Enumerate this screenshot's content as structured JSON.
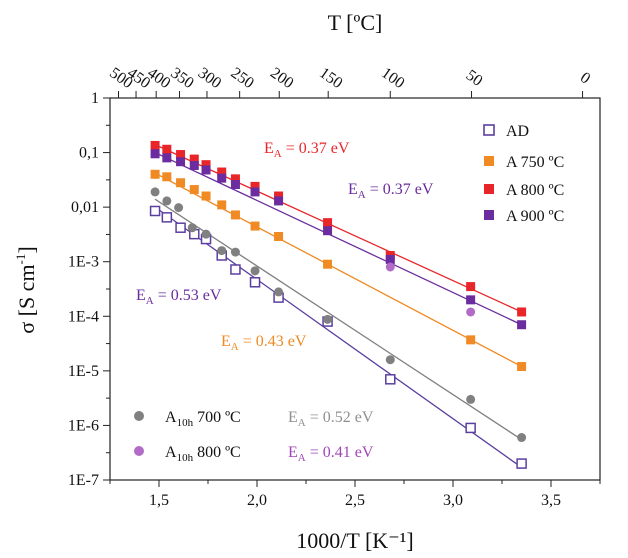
{
  "chart_data": {
    "type": "scatter",
    "xlabel": "1000/T [K⁻¹]",
    "top_xlabel": "T [ºC]",
    "ylabel_main": "σ [S cm",
    "ylabel_sup": "-1",
    "ylabel_end": "]",
    "xlim": [
      1.25,
      3.75
    ],
    "ylog": true,
    "ylim": [
      1e-07,
      1
    ],
    "x_ticks": [
      "1,5",
      "2,0",
      "2,5",
      "3,0",
      "3,5"
    ],
    "x_tick_values": [
      1.5,
      2.0,
      2.5,
      3.0,
      3.5
    ],
    "y_ticks": [
      "1",
      "0,1",
      "0,01",
      "1E-3",
      "1E-4",
      "1E-5",
      "1E-6",
      "1E-7"
    ],
    "y_tick_values": [
      1,
      0.1,
      0.01,
      0.001,
      0.0001,
      1e-05,
      1e-06,
      1e-07
    ],
    "top_ticks": [
      "500",
      "450",
      "400",
      "350",
      "300",
      "250",
      "200",
      "150",
      "100",
      "50",
      "0"
    ],
    "top_tick_values": [
      500,
      450,
      400,
      350,
      300,
      250,
      200,
      150,
      100,
      50,
      0
    ],
    "series": [
      {
        "name": "AD",
        "color": "#5b3fa0",
        "marker": "open-square",
        "x": [
          1.48,
          1.54,
          1.61,
          1.68,
          1.74,
          1.82,
          1.89,
          1.99,
          2.11,
          2.36,
          2.68,
          3.09,
          3.35
        ],
        "y": [
          0.0085,
          0.0065,
          0.0042,
          0.0032,
          0.0026,
          0.0013,
          0.00072,
          0.00042,
          0.00022,
          8e-05,
          7e-06,
          9e-07,
          2e-07
        ],
        "fit": {
          "x": [
            1.48,
            3.35
          ],
          "y": [
            0.01,
            1.7e-07
          ]
        }
      },
      {
        "name": "A 750 ºC",
        "color": "#f08a24",
        "marker": "square",
        "x": [
          1.48,
          1.54,
          1.61,
          1.68,
          1.74,
          1.82,
          1.89,
          1.99,
          2.11,
          2.36,
          3.09,
          3.35
        ],
        "y": [
          0.04,
          0.036,
          0.028,
          0.021,
          0.016,
          0.011,
          0.0072,
          0.0045,
          0.0029,
          0.0009,
          3.7e-05,
          1.2e-05
        ],
        "fit": {
          "x": [
            1.48,
            3.35
          ],
          "y": [
            0.042,
            1.2e-05
          ]
        }
      },
      {
        "name": "A 800 ºC",
        "color": "#e8262a",
        "marker": "square",
        "x": [
          1.48,
          1.54,
          1.61,
          1.68,
          1.74,
          1.82,
          1.89,
          1.99,
          2.11,
          2.36,
          2.68,
          3.09,
          3.35
        ],
        "y": [
          0.135,
          0.115,
          0.092,
          0.076,
          0.06,
          0.044,
          0.033,
          0.024,
          0.016,
          0.0052,
          0.0013,
          0.00035,
          0.00012
        ],
        "fit": {
          "x": [
            1.48,
            3.35
          ],
          "y": [
            0.14,
            0.00012
          ]
        }
      },
      {
        "name": "A 900 ºC",
        "color": "#6a2c9e",
        "marker": "square",
        "x": [
          1.48,
          1.54,
          1.61,
          1.68,
          1.74,
          1.82,
          1.89,
          1.99,
          2.11,
          2.36,
          2.68,
          3.09,
          3.35
        ],
        "y": [
          0.095,
          0.08,
          0.068,
          0.058,
          0.048,
          0.034,
          0.026,
          0.019,
          0.013,
          0.0037,
          0.0011,
          0.0002,
          7e-05
        ],
        "fit": {
          "x": [
            1.48,
            3.35
          ],
          "y": [
            0.1,
            7e-05
          ]
        }
      },
      {
        "name": "A10h 700 ºC",
        "color": "#808080",
        "marker": "circle",
        "x": [
          1.48,
          1.54,
          1.6,
          1.67,
          1.74,
          1.82,
          1.89,
          1.99,
          2.11,
          2.36,
          2.68,
          3.09,
          3.35
        ],
        "y": [
          0.019,
          0.013,
          0.0098,
          0.0042,
          0.0032,
          0.0016,
          0.0015,
          0.00068,
          0.00028,
          8.8e-05,
          1.6e-05,
          3e-06,
          6e-07
        ],
        "fit": {
          "x": [
            1.48,
            3.35
          ],
          "y": [
            0.014,
            5.5e-07
          ]
        }
      },
      {
        "name": "A10h 800 ºC",
        "color": "#b26bc7",
        "marker": "circle",
        "x": [
          2.68,
          3.09
        ],
        "y": [
          0.0008,
          0.00012
        ],
        "fit": null
      }
    ],
    "legend": {
      "placement": "right",
      "items": [
        {
          "label": "AD"
        },
        {
          "label": "A 750 ºC"
        },
        {
          "label": "A 800 ºC"
        },
        {
          "label": "A 900 ºC"
        }
      ]
    },
    "lower_legend": [
      {
        "base": "A",
        "sub": "10h",
        "rest": " 700 ºC",
        "ea_base": "E",
        "ea_sub": "A",
        "ea_rest": " = 0.52 eV",
        "color": "#808080"
      },
      {
        "base": "A",
        "sub": "10h",
        "rest": " 800 ºC",
        "ea_base": "E",
        "ea_sub": "A",
        "ea_rest": " = 0.41 eV",
        "color": "#b26bc7"
      }
    ],
    "annotations": [
      {
        "base": "E",
        "sub": "A",
        "rest": " = 0.37 eV",
        "color": "#e8262a"
      },
      {
        "base": "E",
        "sub": "A",
        "rest": " = 0.37 eV",
        "color": "#6a2c9e"
      },
      {
        "base": "E",
        "sub": "A",
        "rest": " = 0.53 eV",
        "color": "#6a2c9e"
      },
      {
        "base": "E",
        "sub": "A",
        "rest": " = 0.43 eV",
        "color": "#f08a24"
      }
    ]
  }
}
